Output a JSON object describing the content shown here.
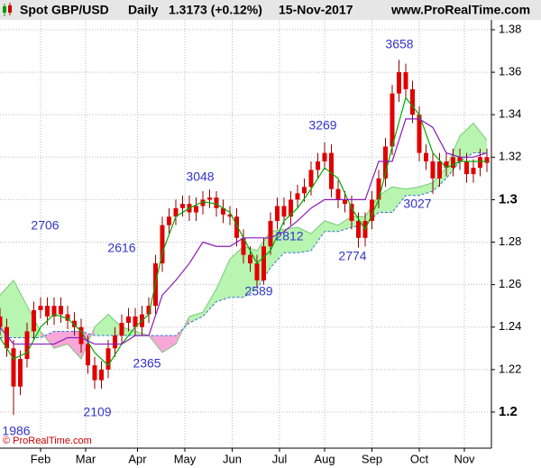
{
  "chart_data": {
    "type": "candlestick",
    "title": "Spot GBP/USD",
    "period": "Daily",
    "last_price": "1.3173 (+0.12%)",
    "date": "15-Nov-2017",
    "website": "www.ProRealTime.com",
    "copyright": "© ProRealTime.com",
    "color": "#e00000",
    "wick_color": "#900000",
    "grid": true,
    "xlim": [
      0,
      218
    ],
    "ylim": [
      1.183,
      1.394
    ],
    "yticks": [
      1.2,
      1.22,
      1.24,
      1.26,
      1.28,
      1.3,
      1.32,
      1.34,
      1.36,
      1.38
    ],
    "xticks": [
      {
        "value": 18,
        "label": "Feb"
      },
      {
        "value": 38,
        "label": "Mar"
      },
      {
        "value": 61,
        "label": "Apr"
      },
      {
        "value": 82,
        "label": "May"
      },
      {
        "value": 103,
        "label": "Jun"
      },
      {
        "value": 124,
        "label": "Jul"
      },
      {
        "value": 144,
        "label": "Aug"
      },
      {
        "value": 165,
        "label": "Sep"
      },
      {
        "value": 186,
        "label": "Oct"
      },
      {
        "value": 206,
        "label": "Nov"
      }
    ],
    "x": [
      0,
      3,
      6,
      9,
      12,
      15,
      18,
      21,
      24,
      27,
      30,
      33,
      36,
      39,
      42,
      45,
      48,
      51,
      54,
      57,
      60,
      63,
      66,
      69,
      72,
      75,
      78,
      81,
      84,
      87,
      90,
      93,
      96,
      99,
      102,
      105,
      108,
      111,
      114,
      117,
      120,
      123,
      126,
      129,
      132,
      135,
      138,
      141,
      144,
      147,
      150,
      153,
      156,
      159,
      162,
      165,
      168,
      171,
      174,
      177,
      180,
      183,
      186,
      189,
      192,
      195,
      198,
      201,
      204,
      207,
      210,
      213,
      216
    ],
    "open": [
      1.245,
      1.24,
      1.23,
      1.212,
      1.225,
      1.238,
      1.248,
      1.25,
      1.245,
      1.25,
      1.246,
      1.243,
      1.24,
      1.232,
      1.222,
      1.215,
      1.22,
      1.23,
      1.236,
      1.242,
      1.245,
      1.24,
      1.246,
      1.25,
      1.27,
      1.288,
      1.292,
      1.296,
      1.298,
      1.294,
      1.297,
      1.3,
      1.301,
      1.296,
      1.293,
      1.292,
      1.282,
      1.274,
      1.27,
      1.262,
      1.278,
      1.29,
      1.297,
      1.292,
      1.3,
      1.303,
      1.306,
      1.314,
      1.318,
      1.322,
      1.305,
      1.3,
      1.298,
      1.29,
      1.282,
      1.29,
      1.3,
      1.31,
      1.325,
      1.35,
      1.36,
      1.352,
      1.34,
      1.322,
      1.318,
      1.31,
      1.318,
      1.315,
      1.32,
      1.318,
      1.312,
      1.315,
      1.32
    ],
    "high": [
      1.249,
      1.244,
      1.234,
      1.229,
      1.242,
      1.252,
      1.254,
      1.254,
      1.254,
      1.254,
      1.25,
      1.247,
      1.244,
      1.236,
      1.226,
      1.224,
      1.234,
      1.24,
      1.246,
      1.249,
      1.249,
      1.25,
      1.254,
      1.274,
      1.292,
      1.296,
      1.3,
      1.302,
      1.302,
      1.301,
      1.304,
      1.3048,
      1.304,
      1.3,
      1.297,
      1.296,
      1.286,
      1.278,
      1.274,
      1.282,
      1.294,
      1.301,
      1.301,
      1.304,
      1.307,
      1.31,
      1.318,
      1.322,
      1.3269,
      1.326,
      1.309,
      1.304,
      1.302,
      1.294,
      1.294,
      1.304,
      1.314,
      1.329,
      1.354,
      1.3658,
      1.364,
      1.356,
      1.344,
      1.326,
      1.322,
      1.322,
      1.322,
      1.324,
      1.324,
      1.322,
      1.319,
      1.324,
      1.324
    ],
    "low": [
      1.236,
      1.226,
      1.1986,
      1.208,
      1.221,
      1.234,
      1.244,
      1.241,
      1.241,
      1.242,
      1.239,
      1.236,
      1.228,
      1.218,
      1.2109,
      1.211,
      1.216,
      1.226,
      1.232,
      1.238,
      1.236,
      1.236,
      1.242,
      1.246,
      1.266,
      1.284,
      1.288,
      1.292,
      1.29,
      1.29,
      1.293,
      1.296,
      1.292,
      1.289,
      1.288,
      1.278,
      1.27,
      1.266,
      1.2589,
      1.26,
      1.274,
      1.286,
      1.288,
      1.288,
      1.296,
      1.299,
      1.302,
      1.31,
      1.314,
      1.301,
      1.296,
      1.294,
      1.286,
      1.2774,
      1.278,
      1.286,
      1.296,
      1.306,
      1.321,
      1.346,
      1.348,
      1.336,
      1.318,
      1.314,
      1.3027,
      1.306,
      1.311,
      1.311,
      1.314,
      1.308,
      1.308,
      1.311,
      1.313
    ],
    "close": [
      1.24,
      1.23,
      1.212,
      1.225,
      1.238,
      1.248,
      1.25,
      1.245,
      1.25,
      1.246,
      1.243,
      1.24,
      1.232,
      1.222,
      1.215,
      1.22,
      1.23,
      1.236,
      1.242,
      1.245,
      1.24,
      1.246,
      1.25,
      1.27,
      1.288,
      1.292,
      1.296,
      1.298,
      1.294,
      1.297,
      1.3,
      1.301,
      1.296,
      1.293,
      1.292,
      1.282,
      1.274,
      1.27,
      1.262,
      1.278,
      1.29,
      1.297,
      1.292,
      1.3,
      1.303,
      1.306,
      1.314,
      1.318,
      1.322,
      1.305,
      1.3,
      1.298,
      1.29,
      1.282,
      1.29,
      1.3,
      1.31,
      1.325,
      1.35,
      1.36,
      1.352,
      1.34,
      1.322,
      1.318,
      1.31,
      1.318,
      1.315,
      1.32,
      1.318,
      1.312,
      1.315,
      1.32,
      1.3173
    ],
    "line_x": [
      0,
      6,
      12,
      18,
      24,
      30,
      36,
      42,
      48,
      54,
      60,
      66,
      72,
      78,
      84,
      90,
      96,
      102,
      108,
      114,
      120,
      126,
      132,
      138,
      144,
      150,
      156,
      162,
      168,
      174,
      180,
      186,
      192,
      198,
      204,
      210,
      216
    ],
    "lines": [
      {
        "color": "#00aa00",
        "values": [
          1.235,
          1.225,
          1.228,
          1.24,
          1.246,
          1.244,
          1.238,
          1.228,
          1.222,
          1.232,
          1.24,
          1.246,
          1.275,
          1.292,
          1.296,
          1.299,
          1.298,
          1.294,
          1.282,
          1.27,
          1.276,
          1.29,
          1.296,
          1.305,
          1.315,
          1.31,
          1.296,
          1.286,
          1.3,
          1.325,
          1.348,
          1.34,
          1.322,
          1.315,
          1.318,
          1.318,
          1.318
        ]
      },
      {
        "color": "#8a1ab8",
        "values": [
          1.24,
          1.232,
          1.232,
          1.232,
          1.232,
          1.235,
          1.235,
          1.232,
          1.232,
          1.232,
          1.236,
          1.236,
          1.255,
          1.262,
          1.27,
          1.28,
          1.278,
          1.278,
          1.282,
          1.282,
          1.282,
          1.285,
          1.29,
          1.296,
          1.3,
          1.3,
          1.3,
          1.3,
          1.318,
          1.318,
          1.338,
          1.338,
          1.334,
          1.322,
          1.32,
          1.32,
          1.322
        ]
      }
    ],
    "cloud": {
      "up_color": "#b8f5b0",
      "down_color": "#f7a8d8",
      "edge_color": "#3a6fd8",
      "span_a": [
        1.255,
        1.262,
        1.25,
        1.238,
        1.23,
        1.232,
        1.225,
        1.24,
        1.246,
        1.24,
        1.238,
        1.236,
        1.228,
        1.232,
        1.245,
        1.247,
        1.258,
        1.272,
        1.278,
        1.276,
        1.285,
        1.286,
        1.287,
        1.284,
        1.29,
        1.288,
        1.292,
        1.292,
        1.302,
        1.306,
        1.305,
        1.306,
        1.308,
        1.315,
        1.33,
        1.336,
        1.328
      ],
      "span_b": [
        1.235,
        1.235,
        1.235,
        1.235,
        1.238,
        1.238,
        1.238,
        1.236,
        1.236,
        1.236,
        1.236,
        1.236,
        1.236,
        1.236,
        1.242,
        1.245,
        1.252,
        1.254,
        1.254,
        1.258,
        1.268,
        1.275,
        1.275,
        1.276,
        1.285,
        1.285,
        1.287,
        1.288,
        1.294,
        1.294,
        1.302,
        1.302,
        1.304,
        1.31,
        1.318,
        1.322,
        1.322
      ]
    },
    "annotations": [
      "1986",
      "2109",
      "2365",
      "2706",
      "2616",
      "3048",
      "2589",
      "2812",
      "3269",
      "2774",
      "3658",
      "3027"
    ]
  }
}
